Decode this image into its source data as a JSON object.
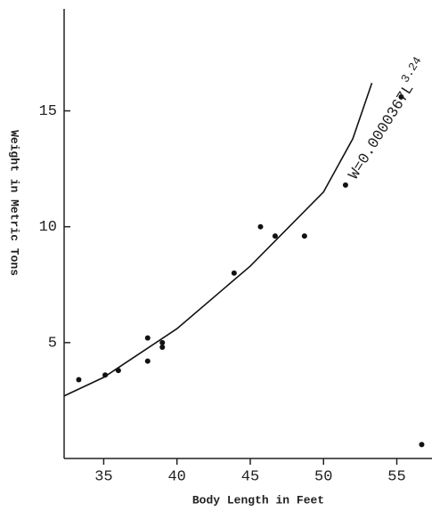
{
  "chart_data": {
    "type": "scatter",
    "x_label": "Body Length in Feet",
    "y_label": "Weight in Metric Tons",
    "x": [
      33.3,
      35.1,
      36.0,
      38.0,
      38.0,
      39.0,
      39.0,
      43.9,
      45.7,
      46.7,
      48.7,
      51.5,
      55.3,
      56.7
    ],
    "values": [
      3.4,
      3.6,
      3.8,
      5.2,
      4.2,
      5.0,
      4.8,
      8.0,
      10.0,
      9.6,
      9.6,
      11.8,
      15.6,
      0.6
    ],
    "color": "#111111",
    "fit": {
      "x": [
        32.3,
        35,
        40,
        45,
        50,
        52,
        53.3
      ],
      "values": [
        2.7,
        3.5,
        5.6,
        8.3,
        11.5,
        13.8,
        16.2
      ],
      "color": "#111111"
    },
    "annotation": {
      "text": "W=0.0000367L",
      "exponent": "3.24"
    },
    "xlim": [
      32.3,
      57.4
    ],
    "xticks": [
      35,
      40,
      45,
      50,
      55
    ],
    "ylim": [
      0,
      19.4
    ],
    "yticks": [
      5,
      10,
      15
    ]
  }
}
